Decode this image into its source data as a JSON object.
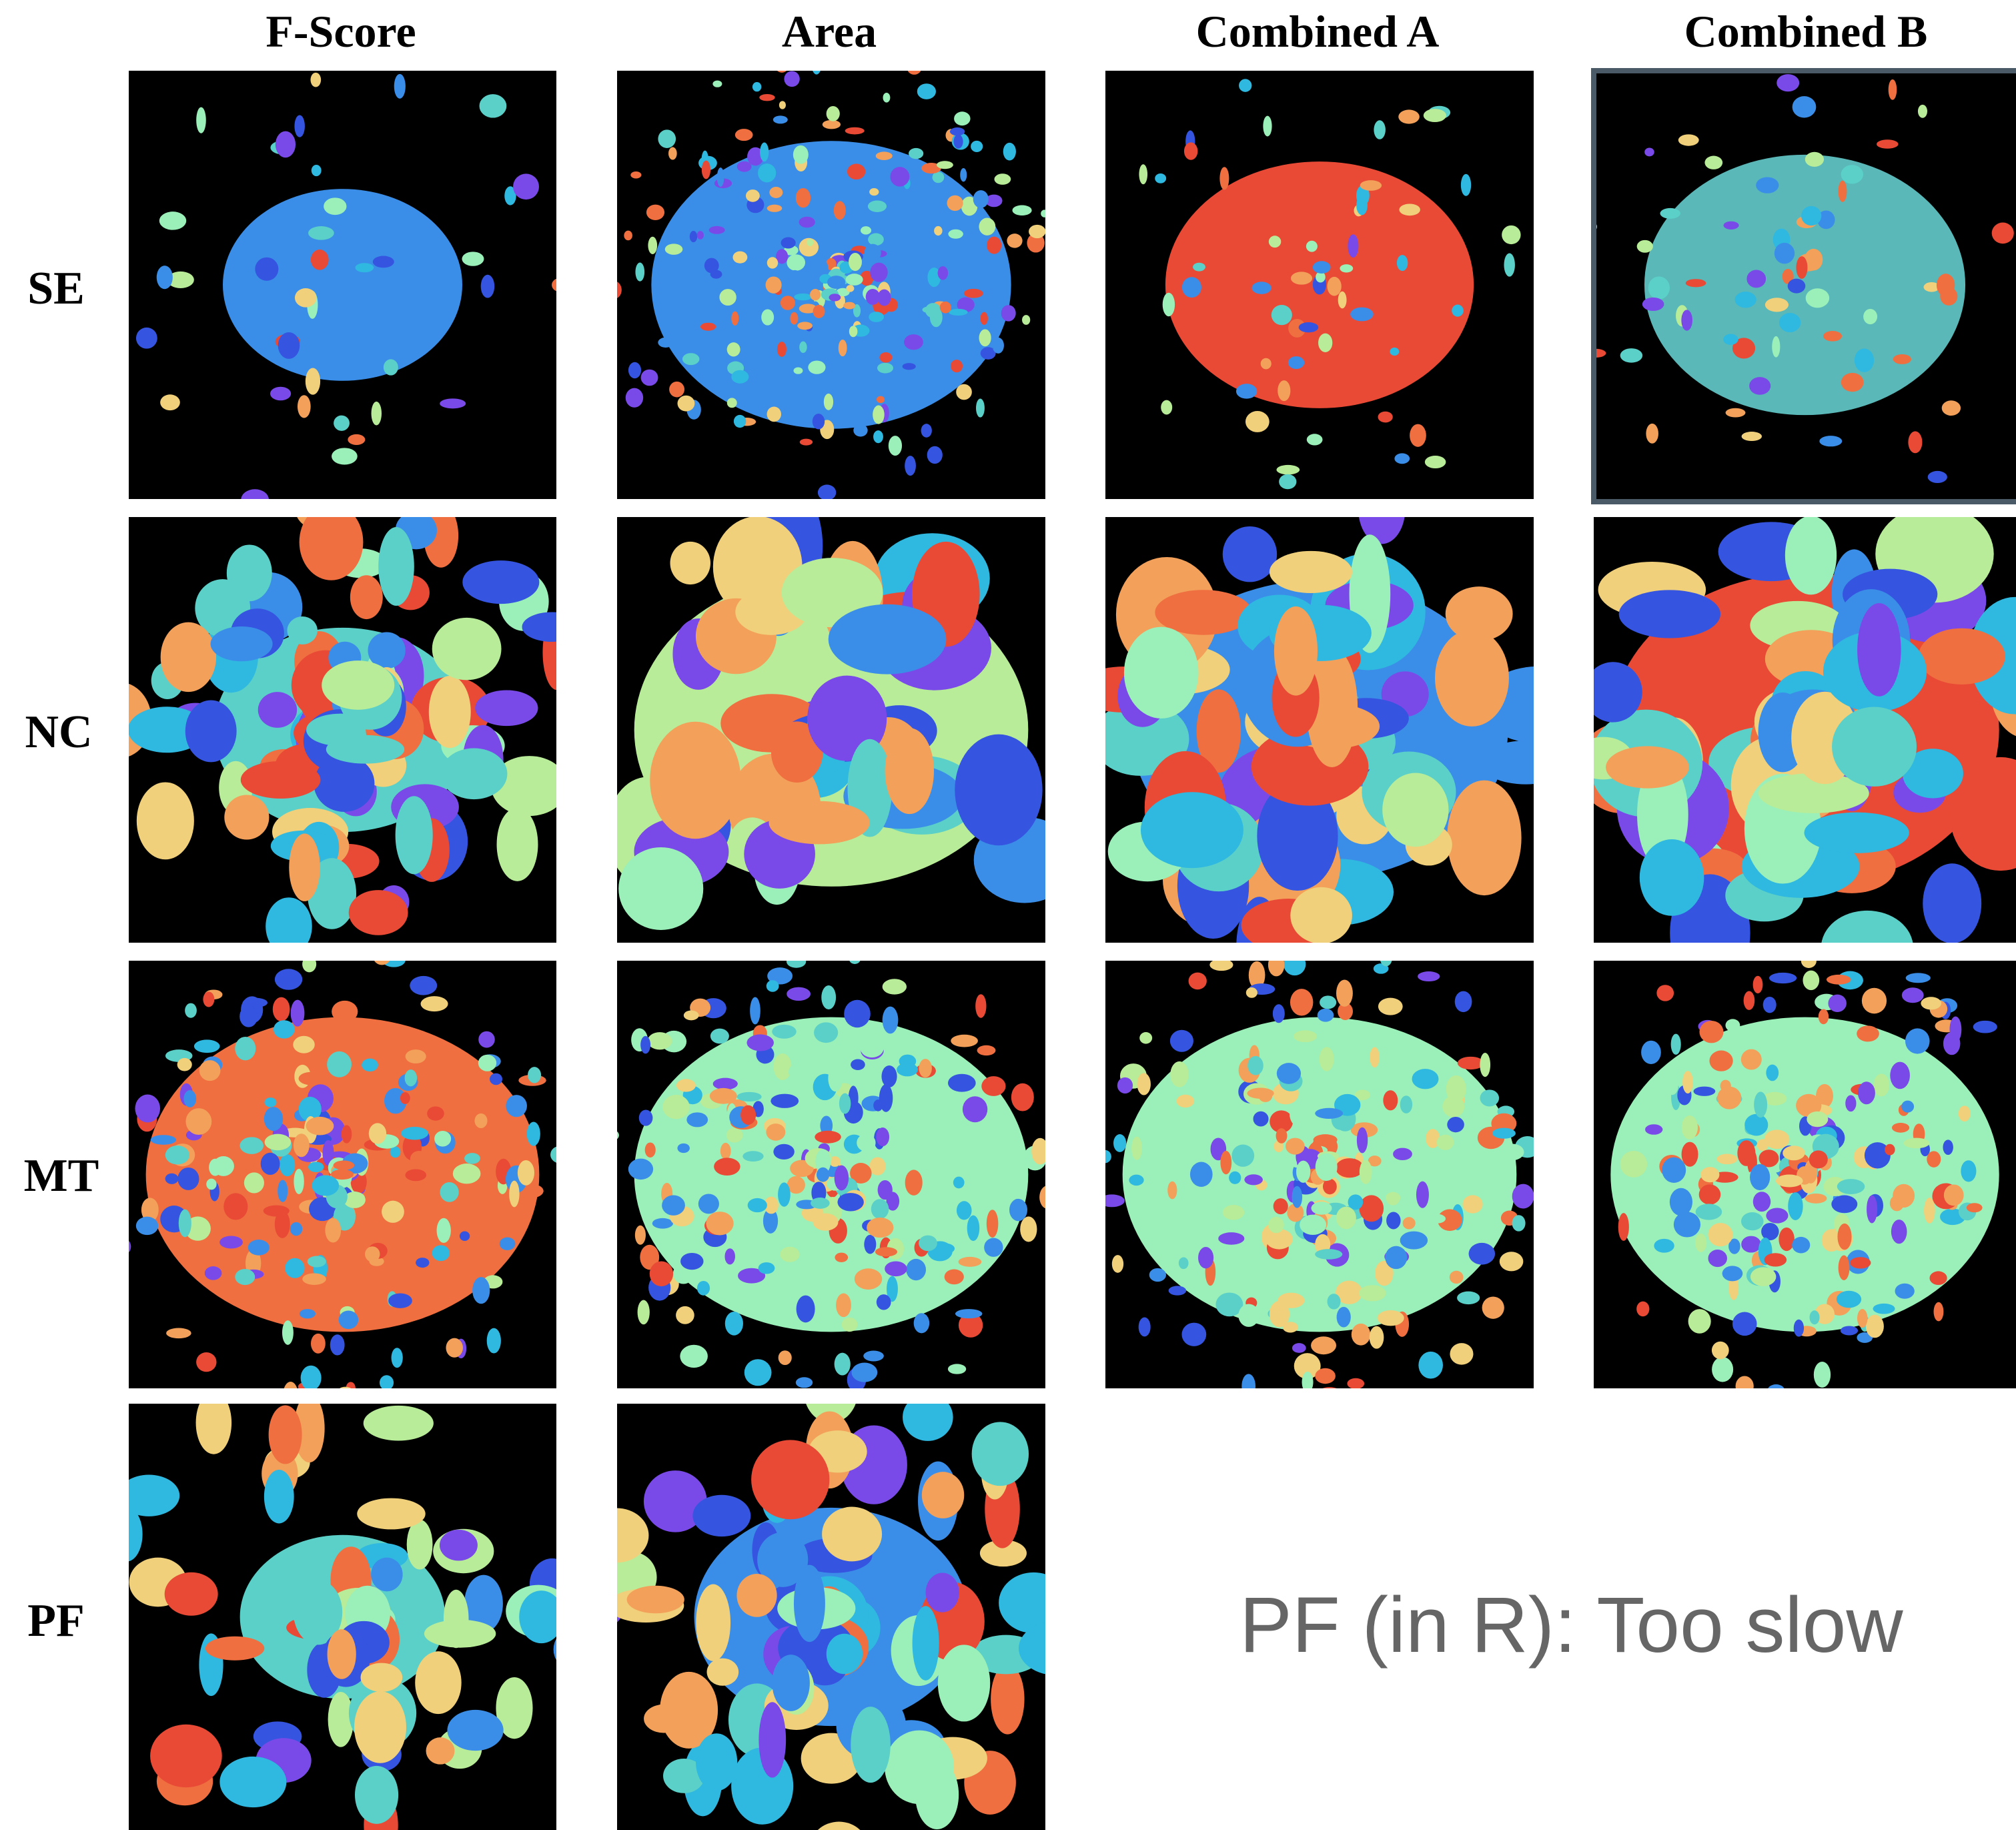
{
  "columns": [
    "F-Score",
    "Area",
    "Combined A",
    "Combined B"
  ],
  "rows": [
    "SE",
    "NC",
    "MT",
    "PF"
  ],
  "note": "PF (in R): Too slow"
}
